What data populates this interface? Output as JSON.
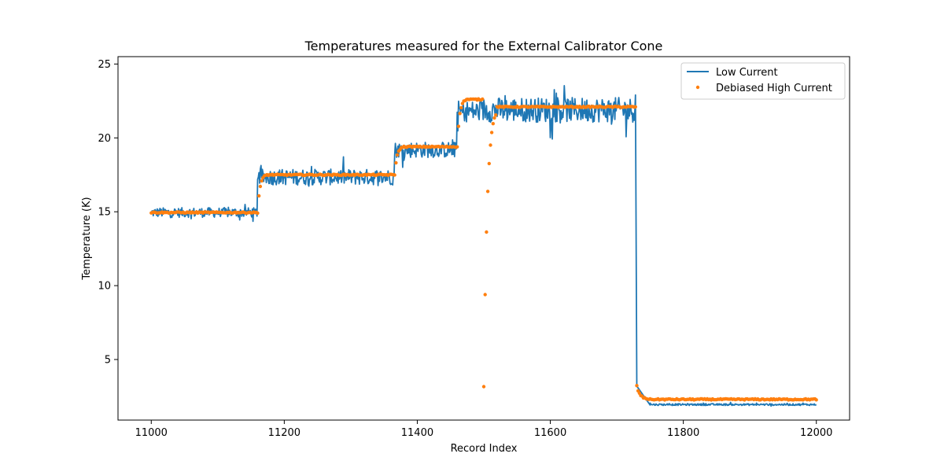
{
  "chart_data": {
    "type": "line",
    "title": "Temperatures measured for the External Calibrator Cone",
    "xlabel": "Record Index",
    "ylabel": "Temperature (K)",
    "xlim": [
      10950,
      12050
    ],
    "ylim": [
      0.9,
      25.5
    ],
    "xticks": [
      11000,
      11200,
      11400,
      11600,
      11800,
      12000
    ],
    "xtick_labels": [
      "11000",
      "11200",
      "11400",
      "11600",
      "11800",
      "12000"
    ],
    "yticks": [
      5,
      10,
      15,
      20,
      25
    ],
    "ytick_labels": [
      "5",
      "10",
      "15",
      "20",
      "25"
    ],
    "grid": false,
    "legend_position": "top-right",
    "series": [
      {
        "name": "Low Current",
        "style": "line",
        "color": "#1f77b4",
        "segments": [
          {
            "x_start": 11000,
            "x_end": 11160,
            "mean": 14.95,
            "noise": 0.55
          },
          {
            "x_start": 11160,
            "x_end": 11366,
            "mean": 17.35,
            "noise": 0.9
          },
          {
            "x_start": 11366,
            "x_end": 11460,
            "mean": 19.2,
            "noise": 0.9
          },
          {
            "x_start": 11460,
            "x_end": 11500,
            "mean": 21.8,
            "noise": 1.2
          },
          {
            "x_start": 11500,
            "x_end": 11728,
            "mean": 21.9,
            "noise": 1.4
          },
          {
            "x_start": 11728,
            "x_end": 11750,
            "mean": 3.1,
            "noise": 0.0
          },
          {
            "x_start": 11750,
            "x_end": 12000,
            "mean": 1.95,
            "noise": 0.1
          }
        ],
        "keypoints": [
          [
            11728,
            22.9
          ],
          [
            11730,
            3.2
          ],
          [
            11750,
            2.05
          ],
          [
            11780,
            1.95
          ],
          [
            11820,
            1.95
          ],
          [
            11830,
            2.05
          ],
          [
            11850,
            1.95
          ],
          [
            11900,
            1.95
          ],
          [
            11910,
            2.05
          ],
          [
            11950,
            1.95
          ],
          [
            11970,
            1.95
          ],
          [
            11980,
            2.05
          ],
          [
            12000,
            1.95
          ]
        ]
      },
      {
        "name": "Debiased High Current",
        "style": "scatter",
        "color": "#ff7f0e",
        "plateaus": [
          {
            "x_start": 11000,
            "x_end": 11160,
            "value": 14.95
          },
          {
            "x_start": 11160,
            "x_end": 11366,
            "value": 17.5
          },
          {
            "x_start": 11366,
            "x_end": 11460,
            "value": 19.4
          },
          {
            "x_start": 11460,
            "x_end": 11500,
            "value": 22.6
          },
          {
            "x_start": 11500,
            "x_end": 11730,
            "value": 22.1
          },
          {
            "x_start": 11730,
            "x_end": 12000,
            "value": 2.3
          }
        ]
      }
    ]
  }
}
